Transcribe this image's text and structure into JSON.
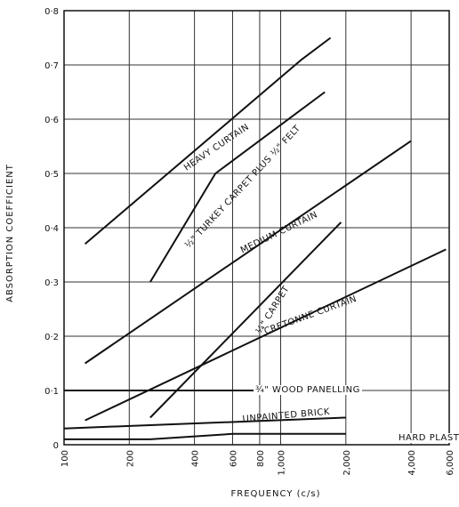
{
  "chart_data": {
    "type": "line",
    "xlabel": "FREQUENCY  (c/s)",
    "ylabel": "ABSORPTION  COEFFICIENT",
    "x_scale": "log",
    "xlim": [
      100,
      6000
    ],
    "ylim": [
      0,
      0.8
    ],
    "grid": true,
    "legend": "none",
    "x_ticks": [
      100,
      200,
      400,
      600,
      800,
      1000,
      2000,
      4000,
      6000
    ],
    "x_tick_labels": [
      "100",
      "200",
      "400",
      "600",
      "800",
      "1,000",
      "2,000",
      "4,000",
      "6,000"
    ],
    "y_ticks": [
      0,
      0.1,
      0.2,
      0.3,
      0.4,
      0.5,
      0.6,
      0.7,
      0.8
    ],
    "y_tick_labels": [
      "0",
      "0·1",
      "0·2",
      "0·3",
      "0·4",
      "0·5",
      "0·6",
      "0·7",
      "0·8"
    ],
    "series": [
      {
        "name": "HEAVY CURTAIN",
        "x": [
          125,
          1250,
          1700
        ],
        "y": [
          0.37,
          0.71,
          0.75
        ]
      },
      {
        "name": "½\" TURKEY CARPET PLUS ½\" FELT",
        "x": [
          250,
          500,
          1600
        ],
        "y": [
          0.3,
          0.5,
          0.65
        ]
      },
      {
        "name": "MEDIUM CURTAIN",
        "x": [
          125,
          4000
        ],
        "y": [
          0.15,
          0.56
        ]
      },
      {
        "name": "¼\" CARPET",
        "x": [
          250,
          1900
        ],
        "y": [
          0.05,
          0.41
        ]
      },
      {
        "name": "CRETONNE CURTAIN",
        "x": [
          125,
          5800
        ],
        "y": [
          0.045,
          0.36
        ]
      },
      {
        "name": "¾\" WOOD PANELLING",
        "x": [
          100,
          2000
        ],
        "y": [
          0.1,
          0.1
        ]
      },
      {
        "name": "UNPAINTED BRICK",
        "x": [
          100,
          2000
        ],
        "y": [
          0.03,
          0.05
        ]
      },
      {
        "name": "HARD PLASTER",
        "x": [
          100,
          250,
          600,
          2000
        ],
        "y": [
          0.01,
          0.01,
          0.02,
          0.02
        ]
      }
    ]
  }
}
